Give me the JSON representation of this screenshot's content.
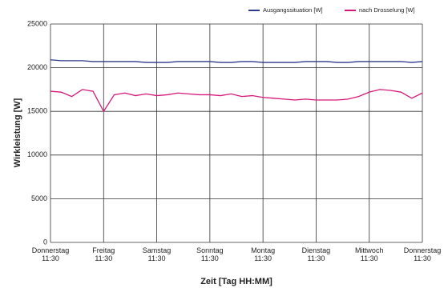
{
  "chart_data": {
    "type": "line",
    "x_label": "Zeit [Tag HH:MM]",
    "y_label": "Wirkleistung [W]",
    "x": [
      0,
      0.2,
      0.4,
      0.6,
      0.8,
      1.0,
      1.2,
      1.4,
      1.6,
      1.8,
      2.0,
      2.2,
      2.4,
      2.6,
      2.8,
      3.0,
      3.2,
      3.4,
      3.6,
      3.8,
      4.0,
      4.2,
      4.4,
      4.6,
      4.8,
      5.0,
      5.2,
      5.4,
      5.6,
      5.8,
      6.0,
      6.2,
      6.4,
      6.6,
      6.8,
      7.0
    ],
    "series": [
      {
        "name": "Ausgangssituation [W]",
        "color": "#2e3a8c",
        "values": [
          20900,
          20800,
          20800,
          20800,
          20700,
          20700,
          20700,
          20700,
          20700,
          20600,
          20600,
          20600,
          20700,
          20700,
          20700,
          20700,
          20600,
          20600,
          20700,
          20700,
          20600,
          20600,
          20600,
          20600,
          20700,
          20700,
          20700,
          20600,
          20600,
          20700,
          20700,
          20700,
          20700,
          20700,
          20600,
          20700
        ]
      },
      {
        "name": "nach Drosselung [W]",
        "color": "#d6187a",
        "values": [
          17300,
          17200,
          16700,
          17500,
          17300,
          15000,
          16900,
          17100,
          16800,
          17000,
          16800,
          16900,
          17100,
          17000,
          16900,
          16900,
          16800,
          17000,
          16700,
          16800,
          16600,
          16500,
          16400,
          16300,
          16400,
          16300,
          16300,
          16300,
          16400,
          16700,
          17200,
          17500,
          17400,
          17200,
          16500,
          17100
        ]
      }
    ],
    "xlim": [
      0,
      7
    ],
    "xticks": [
      {
        "value": 0,
        "label": "Donnerstag\n11:30"
      },
      {
        "value": 1,
        "label": "Freitag\n11:30"
      },
      {
        "value": 2,
        "label": "Samstag\n11:30"
      },
      {
        "value": 3,
        "label": "Sonntag\n11:30"
      },
      {
        "value": 4,
        "label": "Montag\n11:30"
      },
      {
        "value": 5,
        "label": "Dienstag\n11:30"
      },
      {
        "value": 6,
        "label": "Mittwoch\n11:30"
      },
      {
        "value": 7,
        "label": "Donnerstag\n11:30"
      }
    ],
    "ylim": [
      0,
      25000
    ],
    "yticks": [
      0,
      5000,
      10000,
      15000,
      20000,
      25000
    ],
    "grid": true,
    "legend": "top-right"
  }
}
